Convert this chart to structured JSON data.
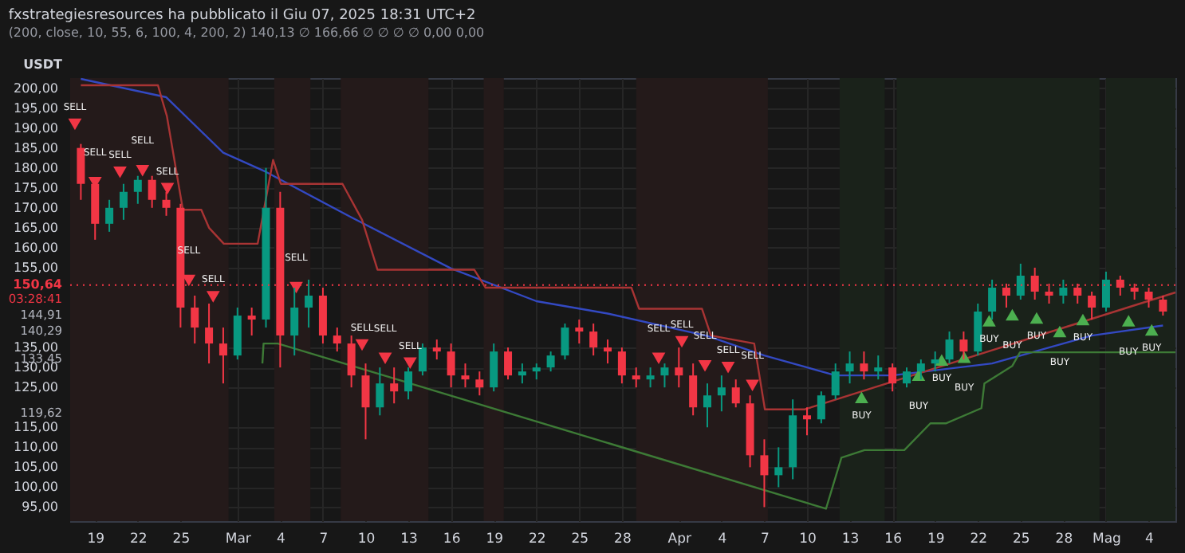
{
  "chart_data": {
    "type": "candlestick",
    "title": "fxstrategiesresources ha pubblicato il Giu 07, 2025 18:31 UTC+2",
    "subtitle": "(200, close, 10, 55, 6, 100, 4, 200, 2)  140,13 ∅ 166,66 ∅ ∅ ∅ ∅ 0,00 0,00",
    "x": [
      "2025-02-18",
      "2025-02-19",
      "2025-02-20",
      "2025-02-21",
      "2025-02-22",
      "2025-02-23",
      "2025-02-24",
      "2025-02-25",
      "2025-02-26",
      "2025-02-27",
      "2025-02-28",
      "2025-03-01",
      "2025-03-02",
      "2025-03-03",
      "2025-03-04",
      "2025-03-05",
      "2025-03-06",
      "2025-03-07",
      "2025-03-08",
      "2025-03-09",
      "2025-03-10",
      "2025-03-11",
      "2025-03-12",
      "2025-03-13",
      "2025-03-14",
      "2025-03-15",
      "2025-03-16",
      "2025-03-17",
      "2025-03-18",
      "2025-03-19",
      "2025-03-20",
      "2025-03-21",
      "2025-03-22",
      "2025-03-23",
      "2025-03-24",
      "2025-03-25",
      "2025-03-26",
      "2025-03-27",
      "2025-03-28",
      "2025-03-29",
      "2025-03-30",
      "2025-03-31",
      "2025-04-01",
      "2025-04-02",
      "2025-04-03",
      "2025-04-04",
      "2025-04-05",
      "2025-04-06",
      "2025-04-07",
      "2025-04-08",
      "2025-04-09",
      "2025-04-10",
      "2025-04-11",
      "2025-04-12",
      "2025-04-13",
      "2025-04-14",
      "2025-04-15",
      "2025-04-16",
      "2025-04-17",
      "2025-04-18",
      "2025-04-19",
      "2025-04-20",
      "2025-04-21",
      "2025-04-22",
      "2025-04-23",
      "2025-04-24",
      "2025-04-25",
      "2025-04-26",
      "2025-04-27",
      "2025-04-28",
      "2025-04-29",
      "2025-04-30",
      "2025-05-01",
      "2025-05-02",
      "2025-05-03",
      "2025-05-04",
      "2025-05-05"
    ],
    "ohlc": [
      [
        185,
        186,
        172,
        176
      ],
      [
        176,
        177,
        162,
        166
      ],
      [
        166,
        172,
        164,
        170
      ],
      [
        170,
        176,
        167,
        174
      ],
      [
        174,
        178,
        171,
        177
      ],
      [
        177,
        178,
        170,
        172
      ],
      [
        172,
        174,
        168,
        170
      ],
      [
        170,
        171,
        140,
        145
      ],
      [
        145,
        148,
        136,
        140
      ],
      [
        140,
        146,
        131,
        136
      ],
      [
        136,
        140,
        126,
        133
      ],
      [
        133,
        145,
        132,
        143
      ],
      [
        143,
        145,
        138,
        142
      ],
      [
        142,
        180,
        140,
        170
      ],
      [
        170,
        174,
        130,
        138
      ],
      [
        138,
        150,
        133,
        145
      ],
      [
        145,
        152,
        140,
        148
      ],
      [
        148,
        150,
        136,
        138
      ],
      [
        138,
        140,
        134,
        136
      ],
      [
        136,
        138,
        125,
        128
      ],
      [
        128,
        131,
        112,
        120
      ],
      [
        120,
        130,
        118,
        126
      ],
      [
        126,
        130,
        121,
        124
      ],
      [
        124,
        130,
        122,
        129
      ],
      [
        129,
        136,
        128,
        135
      ],
      [
        135,
        137,
        132,
        134
      ],
      [
        134,
        136,
        125,
        128
      ],
      [
        128,
        131,
        125,
        127
      ],
      [
        127,
        129,
        123,
        125
      ],
      [
        125,
        136,
        124,
        134
      ],
      [
        134,
        135,
        127,
        128
      ],
      [
        128,
        131,
        126,
        129
      ],
      [
        129,
        131,
        127,
        130
      ],
      [
        130,
        134,
        129,
        133
      ],
      [
        133,
        141,
        132,
        140
      ],
      [
        140,
        142,
        136,
        139
      ],
      [
        139,
        141,
        133,
        135
      ],
      [
        135,
        137,
        131,
        134
      ],
      [
        134,
        135,
        126,
        128
      ],
      [
        128,
        130,
        125,
        127
      ],
      [
        127,
        130,
        125,
        128
      ],
      [
        128,
        131,
        125,
        130
      ],
      [
        130,
        135,
        125,
        128
      ],
      [
        128,
        131,
        118,
        120
      ],
      [
        120,
        126,
        115,
        123
      ],
      [
        123,
        128,
        119,
        125
      ],
      [
        125,
        127,
        120,
        121
      ],
      [
        121,
        123,
        105,
        108
      ],
      [
        108,
        112,
        95,
        103
      ],
      [
        103,
        110,
        100,
        105
      ],
      [
        105,
        122,
        102,
        118
      ],
      [
        118,
        120,
        113,
        117
      ],
      [
        117,
        124,
        116,
        123
      ],
      [
        123,
        131,
        122,
        129
      ],
      [
        129,
        134,
        126,
        131
      ],
      [
        131,
        134,
        127,
        129
      ],
      [
        129,
        133,
        127,
        130
      ],
      [
        130,
        131,
        124,
        126
      ],
      [
        126,
        130,
        125,
        129
      ],
      [
        129,
        132,
        127,
        131
      ],
      [
        131,
        134,
        129,
        132
      ],
      [
        132,
        139,
        131,
        137
      ],
      [
        137,
        139,
        132,
        134
      ],
      [
        134,
        146,
        133,
        144
      ],
      [
        144,
        152,
        142,
        150
      ],
      [
        150,
        151,
        145,
        148
      ],
      [
        148,
        156,
        147,
        153
      ],
      [
        153,
        155,
        147,
        149
      ],
      [
        149,
        151,
        146,
        148
      ],
      [
        148,
        152,
        146,
        150
      ],
      [
        150,
        151,
        146,
        148
      ],
      [
        148,
        149,
        142,
        145
      ],
      [
        145,
        154,
        144,
        152
      ],
      [
        152,
        153,
        148,
        150
      ],
      [
        150,
        151,
        147,
        149
      ],
      [
        149,
        150,
        145,
        147
      ],
      [
        147,
        148,
        143,
        144
      ]
    ],
    "colors": [
      "#f23645",
      "#f23645",
      "#089981",
      "#089981",
      "#089981",
      "#f23645",
      "#f23645",
      "#f23645",
      "#f23645",
      "#f23645",
      "#f23645",
      "#089981",
      "#f23645",
      "#089981",
      "#f23645",
      "#089981",
      "#089981",
      "#f23645",
      "#f23645",
      "#f23645",
      "#f23645",
      "#089981",
      "#f23645",
      "#089981",
      "#089981",
      "#f23645",
      "#f23645",
      "#f23645",
      "#f23645",
      "#089981",
      "#f23645",
      "#089981",
      "#089981",
      "#089981",
      "#089981",
      "#f23645",
      "#f23645",
      "#f23645",
      "#f23645",
      "#f23645",
      "#089981",
      "#089981",
      "#f23645",
      "#f23645",
      "#089981",
      "#089981",
      "#f23645",
      "#f23645",
      "#f23645",
      "#089981",
      "#089981",
      "#f23645",
      "#089981",
      "#089981",
      "#089981",
      "#f23645",
      "#089981",
      "#f23645",
      "#089981",
      "#089981",
      "#089981",
      "#089981",
      "#f23645",
      "#089981",
      "#089981",
      "#f23645",
      "#089981",
      "#f23645",
      "#f23645",
      "#089981",
      "#f23645",
      "#f23645",
      "#089981",
      "#f23645",
      "#f23645",
      "#f23645",
      "#f23645"
    ],
    "series": [
      {
        "type": "line",
        "color": "#3349c2",
        "x": [
          "2025-02-18",
          "2025-02-24",
          "2025-02-28",
          "2025-03-03",
          "2025-03-09",
          "2025-03-16",
          "2025-03-22",
          "2025-03-27",
          "2025-04-03",
          "2025-04-07",
          "2025-04-12",
          "2025-04-16",
          "2025-04-23",
          "2025-04-27",
          "2025-04-30",
          "2025-05-05"
        ],
        "values": [
          202.3,
          197.7,
          183.8,
          179,
          167.6,
          154.8,
          146.6,
          143.5,
          137.9,
          133,
          128,
          128,
          131,
          135,
          138,
          140.5
        ]
      },
      {
        "type": "line",
        "color": "#a83434",
        "x": [
          "2025-02-18",
          "2025-02-23T10:00",
          "2025-02-23T17:00",
          "2025-02-24T01:00",
          "2025-02-25T04:00",
          "2025-02-26T11:00",
          "2025-02-27T00:00",
          "2025-02-28T01:00",
          "2025-03-02T10:00",
          "2025-03-03T12:00",
          "2025-03-04T01:00",
          "2025-03-08T09:00",
          "2025-03-09T18:00",
          "2025-03-10T20:00",
          "2025-03-17T15:00",
          "2025-03-18T10:00",
          "2025-03-28T16:00",
          "2025-03-29T05:00",
          "2025-04-02T15:00",
          "2025-04-03T06:00",
          "2025-04-06T07:00",
          "2025-04-07T01:00",
          "2025-04-09T20:00",
          "2025-05-05T21:00"
        ],
        "values": [
          200.7,
          200.7,
          197,
          193,
          169.5,
          169.5,
          165,
          161,
          161,
          182,
          176,
          176,
          167,
          154.5,
          154.5,
          150,
          150,
          144.7,
          144.7,
          138,
          136,
          119.5,
          119.5,
          148.8
        ]
      },
      {
        "type": "line",
        "color": "#3d7a36",
        "x": [
          "2025-03-02T18:00",
          "2025-03-02T20:00",
          "2025-03-03T20:00",
          "2025-04-11T08:00",
          "2025-04-12T10:00",
          "2025-04-14T01:00",
          "2025-04-16T20:00",
          "2025-04-18T16:00",
          "2025-04-19T18:00",
          "2025-04-22T06:00",
          "2025-04-22T11:00",
          "2025-04-24T10:00",
          "2025-04-24T23:00",
          "2025-05-05T21:00"
        ],
        "values": [
          131,
          136,
          136,
          94.6,
          107.4,
          109.3,
          109.3,
          116,
          116,
          119.8,
          126,
          130.4,
          133.8,
          133.8
        ]
      },
      {
        "type": "scatter",
        "name": "SELL",
        "color": "#f23645",
        "marker": "triangle",
        "x": [
          "2025-02-17T14:00",
          "2025-02-19T00:00",
          "2025-02-20T18:00",
          "2025-02-22T08:00",
          "2025-02-24T02:00",
          "2025-02-25T14:00",
          "2025-02-27T07:00",
          "2025-03-05T03:00",
          "2025-03-09T18:00",
          "2025-03-11T09:00",
          "2025-03-13T03:00",
          "2025-03-30T14:00",
          "2025-04-01T05:00",
          "2025-04-02T20:00",
          "2025-04-04T11:00",
          "2025-04-06T04:00"
        ],
        "values": [
          190.9,
          176.3,
          178.9,
          179.3,
          174.8,
          151.8,
          147.7,
          150,
          135.6,
          132.3,
          131.1,
          132.3,
          136.4,
          130.4,
          130,
          125.5
        ]
      },
      {
        "type": "scatter",
        "name": "BUY",
        "color": "#4caf50",
        "marker": "triangle",
        "x": [
          "2025-04-13T20:00",
          "2025-04-17T20:00",
          "2025-04-19T11:00",
          "2025-04-21T01:00",
          "2025-04-22T19:00",
          "2025-04-24T10:00",
          "2025-04-26T03:00",
          "2025-04-27T18:00",
          "2025-04-29T09:00",
          "2025-05-02T14:00",
          "2025-05-04T05:00"
        ],
        "values": [
          122.5,
          128.1,
          131.9,
          132.6,
          141.7,
          143.2,
          142.4,
          139,
          142,
          141.7,
          139.4
        ]
      }
    ],
    "xlim": [
      "2025-02-17T06:00",
      "2025-05-05T21:00"
    ],
    "xticks": [
      {
        "value": "2025-02-19",
        "label": "19"
      },
      {
        "value": "2025-02-22",
        "label": "22"
      },
      {
        "value": "2025-02-25",
        "label": "25"
      },
      {
        "value": "2025-03-01",
        "label": "Mar"
      },
      {
        "value": "2025-03-04",
        "label": "4"
      },
      {
        "value": "2025-03-07",
        "label": "7"
      },
      {
        "value": "2025-03-10",
        "label": "10"
      },
      {
        "value": "2025-03-13",
        "label": "13"
      },
      {
        "value": "2025-03-16",
        "label": "16"
      },
      {
        "value": "2025-03-19",
        "label": "19"
      },
      {
        "value": "2025-03-22",
        "label": "22"
      },
      {
        "value": "2025-03-25",
        "label": "25"
      },
      {
        "value": "2025-03-28",
        "label": "28"
      },
      {
        "value": "2025-04-01",
        "label": "Apr"
      },
      {
        "value": "2025-04-04",
        "label": "4"
      },
      {
        "value": "2025-04-07",
        "label": "7"
      },
      {
        "value": "2025-04-10",
        "label": "10"
      },
      {
        "value": "2025-04-13",
        "label": "13"
      },
      {
        "value": "2025-04-16",
        "label": "16"
      },
      {
        "value": "2025-04-19",
        "label": "19"
      },
      {
        "value": "2025-04-22",
        "label": "22"
      },
      {
        "value": "2025-04-25",
        "label": "25"
      },
      {
        "value": "2025-04-28",
        "label": "28"
      },
      {
        "value": "2025-05-01",
        "label": "Mag"
      },
      {
        "value": "2025-05-04",
        "label": "4"
      }
    ],
    "ylim": [
      91.5,
      202.5
    ],
    "yticks": [
      {
        "value": 95,
        "label": "95,00"
      },
      {
        "value": 100,
        "label": "100,00"
      },
      {
        "value": 105,
        "label": "105,00"
      },
      {
        "value": 110,
        "label": "110,00"
      },
      {
        "value": 115,
        "label": "115,00"
      },
      {
        "value": 125,
        "label": "125,00"
      },
      {
        "value": 130,
        "label": "130,00"
      },
      {
        "value": 135,
        "label": "135,00"
      },
      {
        "value": 155,
        "label": "155,00"
      },
      {
        "value": 160,
        "label": "160,00"
      },
      {
        "value": 165,
        "label": "165,00"
      },
      {
        "value": 170,
        "label": "170,00"
      },
      {
        "value": 175,
        "label": "175,00"
      },
      {
        "value": 180,
        "label": "180,00"
      },
      {
        "value": 185,
        "label": "185,00"
      },
      {
        "value": 190,
        "label": "190,00"
      },
      {
        "value": 195,
        "label": "195,00"
      },
      {
        "value": 200,
        "label": "200,00"
      }
    ],
    "grid": true,
    "bands": [
      {
        "axis": "x",
        "from": "2025-02-17T06:00",
        "to": "2025-02-28T09:00",
        "color": "#241a1a"
      },
      {
        "axis": "x",
        "from": "2025-03-03T14:00",
        "to": "2025-03-06T03:00",
        "color": "#241a1a"
      },
      {
        "axis": "x",
        "from": "2025-03-08T06:00",
        "to": "2025-03-14T10:00",
        "color": "#241a1a"
      },
      {
        "axis": "x",
        "from": "2025-03-18T07:00",
        "to": "2025-03-19T17:00",
        "color": "#241a1a"
      },
      {
        "axis": "x",
        "from": "2025-03-29T00:00",
        "to": "2025-04-07T06:00",
        "color": "#241a1a"
      },
      {
        "axis": "x",
        "from": "2025-04-12T07:00",
        "to": "2025-04-15T11:00",
        "color": "#1a221a"
      },
      {
        "axis": "x",
        "from": "2025-04-16T07:00",
        "to": "2025-04-30T13:00",
        "color": "#1a221a"
      },
      {
        "axis": "x",
        "from": "2025-05-01T00:00",
        "to": "2025-05-05T21:00",
        "color": "#1a221a"
      }
    ],
    "ref_lines": [
      {
        "axis": "y",
        "value": 150.64,
        "label": "150,64",
        "color": "#f23645",
        "line_style": "dotted"
      }
    ],
    "annotations": [
      "USDT",
      "03:28:41",
      "144,91",
      "140,29",
      "133,45",
      "119,62"
    ]
  }
}
